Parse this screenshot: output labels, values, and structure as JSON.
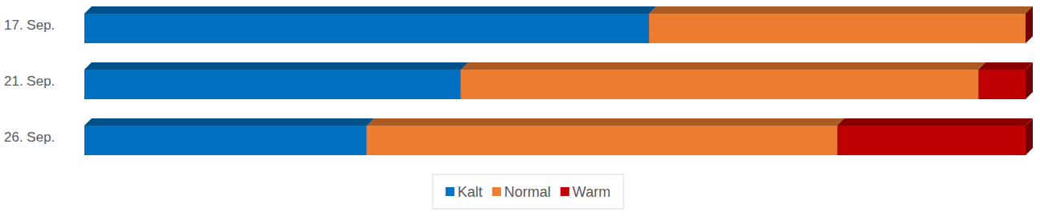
{
  "chart_data": {
    "type": "bar",
    "orientation": "horizontal",
    "stacked": true,
    "categories": [
      "17. Sep.",
      "21. Sep.",
      "26. Sep."
    ],
    "series": [
      {
        "name": "Kalt",
        "color": "#0070c0",
        "values": [
          60,
          40,
          30
        ]
      },
      {
        "name": "Normal",
        "color": "#ed7d31",
        "values": [
          40,
          55,
          50
        ]
      },
      {
        "name": "Warm",
        "color": "#c00000",
        "values": [
          0,
          5,
          20
        ]
      }
    ],
    "xlim": [
      0,
      100
    ],
    "tick_labels": false,
    "grid": false,
    "legend": "bottom"
  }
}
